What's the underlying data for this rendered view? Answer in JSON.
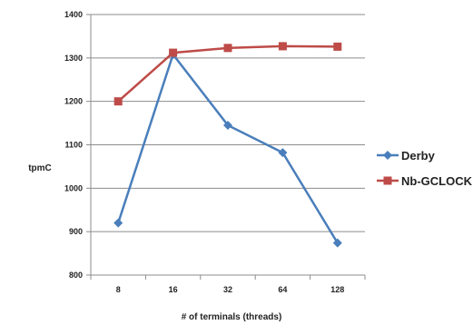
{
  "chart_data": {
    "type": "line",
    "title": "",
    "xlabel": "# of terminals (threads)",
    "ylabel": "tpmC",
    "categories": [
      "8",
      "16",
      "32",
      "64",
      "128"
    ],
    "ylim": [
      800,
      1400
    ],
    "yticks": [
      800,
      900,
      1000,
      1100,
      1200,
      1300,
      1400
    ],
    "grid": true,
    "legend_position": "right",
    "series": [
      {
        "name": "Derby",
        "values": [
          920,
          1308,
          1145,
          1082,
          874
        ],
        "color": "#4a7ebb",
        "marker": "diamond"
      },
      {
        "name": "Nb-GCLOCK",
        "values": [
          1200,
          1312,
          1323,
          1327,
          1326
        ],
        "color": "#be4b48",
        "marker": "square"
      }
    ]
  }
}
